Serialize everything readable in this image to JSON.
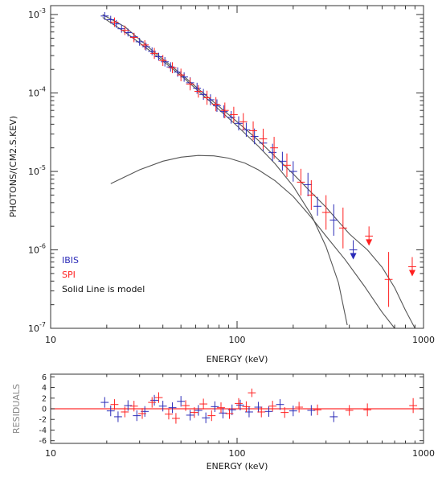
{
  "chart_data": [
    {
      "type": "scatter",
      "subtype": "spectrum-with-errorbars",
      "x_scale": "log",
      "y_scale": "log",
      "xlim": [
        10,
        1000
      ],
      "ylim": [
        1e-07,
        0.0013
      ],
      "xlabel": "ENERGY (keV)",
      "ylabel": "PHOTONS/(CM2.S.KEV)",
      "x_ticks": [
        "10",
        "100",
        "1000"
      ],
      "y_ticks": [
        {
          "base": "10",
          "exp": "-3",
          "value": 0.001
        },
        {
          "base": "10",
          "exp": "-4",
          "value": 0.0001
        },
        {
          "base": "10",
          "exp": "-5",
          "value": 1e-05
        },
        {
          "base": "10",
          "exp": "-6",
          "value": 1e-06
        },
        {
          "base": "10",
          "exp": "-7",
          "value": 1e-07
        }
      ],
      "legend": {
        "placement": "bottom-left",
        "entries": [
          {
            "label": "IBIS",
            "color": "#2b2bb8"
          },
          {
            "label": "SPI",
            "color": "#ff2020"
          },
          {
            "label": "Solid Line is model",
            "color": "#111111"
          }
        ]
      },
      "series": [
        {
          "name": "IBIS",
          "color": "#2b2bb8",
          "points": [
            {
              "x": 19.5,
              "y": 0.00096,
              "dy": 0.05
            },
            {
              "x": 21,
              "y": 0.00086,
              "dy": 0.05
            },
            {
              "x": 22.5,
              "y": 0.00076,
              "dy": 0.05
            },
            {
              "x": 24,
              "y": 0.00066,
              "dy": 0.05
            },
            {
              "x": 26,
              "y": 0.00059,
              "dy": 0.05
            },
            {
              "x": 28,
              "y": 0.00052,
              "dy": 0.05
            },
            {
              "x": 30,
              "y": 0.00045,
              "dy": 0.05
            },
            {
              "x": 32.5,
              "y": 0.00039,
              "dy": 0.05
            },
            {
              "x": 35,
              "y": 0.00034,
              "dy": 0.05
            },
            {
              "x": 38,
              "y": 0.00029,
              "dy": 0.05
            },
            {
              "x": 41,
              "y": 0.00025,
              "dy": 0.06
            },
            {
              "x": 44,
              "y": 0.000215,
              "dy": 0.06
            },
            {
              "x": 48,
              "y": 0.000185,
              "dy": 0.06
            },
            {
              "x": 52,
              "y": 0.00016,
              "dy": 0.06
            },
            {
              "x": 56,
              "y": 0.000135,
              "dy": 0.07
            },
            {
              "x": 61,
              "y": 0.000115,
              "dy": 0.07
            },
            {
              "x": 66,
              "y": 9.6e-05,
              "dy": 0.07
            },
            {
              "x": 72,
              "y": 8.2e-05,
              "dy": 0.07
            },
            {
              "x": 78,
              "y": 6.9e-05,
              "dy": 0.08
            },
            {
              "x": 85,
              "y": 5.8e-05,
              "dy": 0.08
            },
            {
              "x": 93,
              "y": 4.9e-05,
              "dy": 0.08
            },
            {
              "x": 102,
              "y": 4.1e-05,
              "dy": 0.09
            },
            {
              "x": 112,
              "y": 3.4e-05,
              "dy": 0.09
            },
            {
              "x": 124,
              "y": 2.8e-05,
              "dy": 0.1
            },
            {
              "x": 138,
              "y": 2.3e-05,
              "dy": 0.1
            },
            {
              "x": 155,
              "y": 1.75e-05,
              "dy": 0.11
            },
            {
              "x": 175,
              "y": 1.35e-05,
              "dy": 0.12
            },
            {
              "x": 200,
              "y": 1e-05,
              "dy": 0.13
            },
            {
              "x": 240,
              "y": 6.8e-06,
              "dy": 0.15
            },
            {
              "x": 270,
              "y": 3.6e-06,
              "dy": 0.12
            },
            {
              "x": 330,
              "y": 2.4e-06,
              "dy": 0.2
            },
            {
              "x": 420,
              "y": 1e-06,
              "upper_limit": true
            }
          ]
        },
        {
          "name": "SPI",
          "color": "#ff2020",
          "points": [
            {
              "x": 22,
              "y": 0.0008,
              "dy": 0.06
            },
            {
              "x": 25,
              "y": 0.00063,
              "dy": 0.06
            },
            {
              "x": 28,
              "y": 0.00051,
              "dy": 0.06
            },
            {
              "x": 32,
              "y": 0.00041,
              "dy": 0.06
            },
            {
              "x": 36,
              "y": 0.00032,
              "dy": 0.07
            },
            {
              "x": 40,
              "y": 0.00026,
              "dy": 0.07
            },
            {
              "x": 45,
              "y": 0.00021,
              "dy": 0.07
            },
            {
              "x": 50,
              "y": 0.00017,
              "dy": 0.08
            },
            {
              "x": 56,
              "y": 0.00013,
              "dy": 0.08
            },
            {
              "x": 62,
              "y": 0.000105,
              "dy": 0.08
            },
            {
              "x": 69,
              "y": 8.7e-05,
              "dy": 0.09
            },
            {
              "x": 77,
              "y": 7.2e-05,
              "dy": 0.09
            },
            {
              "x": 86,
              "y": 6e-05,
              "dy": 0.1
            },
            {
              "x": 96,
              "y": 5.3e-05,
              "dy": 0.1
            },
            {
              "x": 108,
              "y": 4.3e-05,
              "dy": 0.11
            },
            {
              "x": 122,
              "y": 3.3e-05,
              "dy": 0.12
            },
            {
              "x": 138,
              "y": 2.6e-05,
              "dy": 0.13
            },
            {
              "x": 158,
              "y": 2e-05,
              "dy": 0.14
            },
            {
              "x": 185,
              "y": 1.2e-05,
              "dy": 0.15
            },
            {
              "x": 220,
              "y": 7.3e-06,
              "dy": 0.17
            },
            {
              "x": 250,
              "y": 5e-06,
              "dy": 0.19
            },
            {
              "x": 300,
              "y": 3e-06,
              "dy": 0.22
            },
            {
              "x": 370,
              "y": 1.9e-06,
              "dy": 0.26
            },
            {
              "x": 510,
              "y": 1.5e-06,
              "upper_limit": true
            },
            {
              "x": 650,
              "y": 4.2e-07,
              "dy": 0.35
            },
            {
              "x": 870,
              "y": 6.1e-07,
              "upper_limit": true
            }
          ]
        }
      ],
      "model_curves": [
        {
          "name": "total",
          "color": "#444444",
          "points": [
            [
              19,
              0.001
            ],
            [
              25,
              0.0007
            ],
            [
              35,
              0.00035
            ],
            [
              50,
              0.000175
            ],
            [
              70,
              8.8e-05
            ],
            [
              100,
              4.3e-05
            ],
            [
              130,
              2.5e-05
            ],
            [
              160,
              1.55e-05
            ],
            [
              200,
              9.3e-06
            ],
            [
              250,
              5.4e-06
            ],
            [
              300,
              3.5e-06
            ],
            [
              350,
              2.3e-06
            ],
            [
              400,
              1.6e-06
            ],
            [
              450,
              1.25e-06
            ],
            [
              500,
              1e-06
            ],
            [
              600,
              6e-07
            ],
            [
              700,
              3.3e-07
            ],
            [
              800,
              1.7e-07
            ],
            [
              900,
              1e-07
            ]
          ]
        },
        {
          "name": "component-a",
          "color": "#444444",
          "points": [
            [
              19,
              0.00092
            ],
            [
              25,
              0.0006
            ],
            [
              35,
              0.00033
            ],
            [
              50,
              0.000167
            ],
            [
              70,
              8.2e-05
            ],
            [
              100,
              3.8e-05
            ],
            [
              130,
              2.1e-05
            ],
            [
              160,
              1.25e-05
            ],
            [
              200,
              6.5e-06
            ],
            [
              250,
              2.8e-06
            ],
            [
              300,
              1.1e-06
            ],
            [
              350,
              3.8e-07
            ],
            [
              390,
              1.1e-07
            ]
          ]
        },
        {
          "name": "component-b",
          "color": "#444444",
          "points": [
            [
              21,
              7e-06
            ],
            [
              30,
              1.05e-05
            ],
            [
              40,
              1.35e-05
            ],
            [
              50,
              1.52e-05
            ],
            [
              62,
              1.6e-05
            ],
            [
              75,
              1.58e-05
            ],
            [
              90,
              1.48e-05
            ],
            [
              110,
              1.28e-05
            ],
            [
              130,
              1.05e-05
            ],
            [
              160,
              7.6e-06
            ],
            [
              200,
              4.8e-06
            ],
            [
              250,
              2.6e-06
            ],
            [
              300,
              1.5e-06
            ],
            [
              380,
              7.5e-07
            ],
            [
              480,
              3.5e-07
            ],
            [
              600,
              1.6e-07
            ],
            [
              700,
              1e-07
            ]
          ]
        }
      ]
    },
    {
      "type": "scatter",
      "subtype": "residuals",
      "x_scale": "log",
      "y_scale": "linear",
      "xlim": [
        10,
        1000
      ],
      "ylim": [
        -6.5,
        6.5
      ],
      "xlabel": "ENERGY (keV)",
      "ylabel": "RESIDUALS",
      "x_ticks": [
        "10",
        "100",
        "1000"
      ],
      "y_ticks": [
        "6",
        "4",
        "2",
        "0",
        "-2",
        "-4",
        "-6"
      ],
      "zero_line_color": "#ff3030",
      "series": [
        {
          "name": "IBIS",
          "color": "#2b2bb8",
          "points": [
            {
              "x": 19.5,
              "y": 1.2,
              "dy": 1
            },
            {
              "x": 21,
              "y": -0.4,
              "dy": 1
            },
            {
              "x": 23,
              "y": -1.5,
              "dy": 1
            },
            {
              "x": 26,
              "y": 0.6,
              "dy": 1
            },
            {
              "x": 29,
              "y": -1.3,
              "dy": 1
            },
            {
              "x": 32,
              "y": -0.5,
              "dy": 1
            },
            {
              "x": 36,
              "y": 1.6,
              "dy": 1
            },
            {
              "x": 40,
              "y": 0.5,
              "dy": 1
            },
            {
              "x": 45,
              "y": 0.2,
              "dy": 1
            },
            {
              "x": 50,
              "y": 1.4,
              "dy": 1
            },
            {
              "x": 56,
              "y": -1.2,
              "dy": 1
            },
            {
              "x": 62,
              "y": -0.3,
              "dy": 1
            },
            {
              "x": 68,
              "y": -1.7,
              "dy": 1
            },
            {
              "x": 76,
              "y": 0.4,
              "dy": 1
            },
            {
              "x": 84,
              "y": -0.8,
              "dy": 1
            },
            {
              "x": 94,
              "y": -0.2,
              "dy": 1
            },
            {
              "x": 104,
              "y": 0.7,
              "dy": 1
            },
            {
              "x": 116,
              "y": -0.6,
              "dy": 1
            },
            {
              "x": 130,
              "y": 0.3,
              "dy": 1
            },
            {
              "x": 148,
              "y": -0.5,
              "dy": 1
            },
            {
              "x": 170,
              "y": 0.8,
              "dy": 1
            },
            {
              "x": 200,
              "y": -0.4,
              "dy": 1
            },
            {
              "x": 250,
              "y": -0.3,
              "dy": 1
            },
            {
              "x": 330,
              "y": -1.5,
              "dy": 1
            }
          ]
        },
        {
          "name": "SPI",
          "color": "#ff2020",
          "points": [
            {
              "x": 22,
              "y": 0.8,
              "dy": 1
            },
            {
              "x": 25,
              "y": -0.6,
              "dy": 1
            },
            {
              "x": 28,
              "y": 0.5,
              "dy": 1
            },
            {
              "x": 31,
              "y": -0.9,
              "dy": 1
            },
            {
              "x": 35,
              "y": 1.2,
              "dy": 1
            },
            {
              "x": 38,
              "y": 2.1,
              "dy": 1
            },
            {
              "x": 43,
              "y": -1.0,
              "dy": 1
            },
            {
              "x": 47,
              "y": -1.8,
              "dy": 1
            },
            {
              "x": 53,
              "y": 0.6,
              "dy": 1
            },
            {
              "x": 59,
              "y": -0.7,
              "dy": 1
            },
            {
              "x": 66,
              "y": 0.9,
              "dy": 1
            },
            {
              "x": 73,
              "y": -1.3,
              "dy": 1
            },
            {
              "x": 82,
              "y": 0.2,
              "dy": 1
            },
            {
              "x": 91,
              "y": -0.9,
              "dy": 1
            },
            {
              "x": 102,
              "y": 1.0,
              "dy": 1
            },
            {
              "x": 112,
              "y": 0.4,
              "dy": 1
            },
            {
              "x": 120,
              "y": 3.0,
              "dy": 0.8
            },
            {
              "x": 135,
              "y": -0.6,
              "dy": 1
            },
            {
              "x": 155,
              "y": 0.5,
              "dy": 1
            },
            {
              "x": 180,
              "y": -0.7,
              "dy": 1
            },
            {
              "x": 215,
              "y": 0.3,
              "dy": 1
            },
            {
              "x": 270,
              "y": -0.2,
              "dy": 1
            },
            {
              "x": 400,
              "y": -0.3,
              "dy": 1
            },
            {
              "x": 500,
              "y": -0.2,
              "dy": 1.2
            },
            {
              "x": 880,
              "y": 0.6,
              "dy": 1.4
            }
          ]
        }
      ]
    }
  ]
}
